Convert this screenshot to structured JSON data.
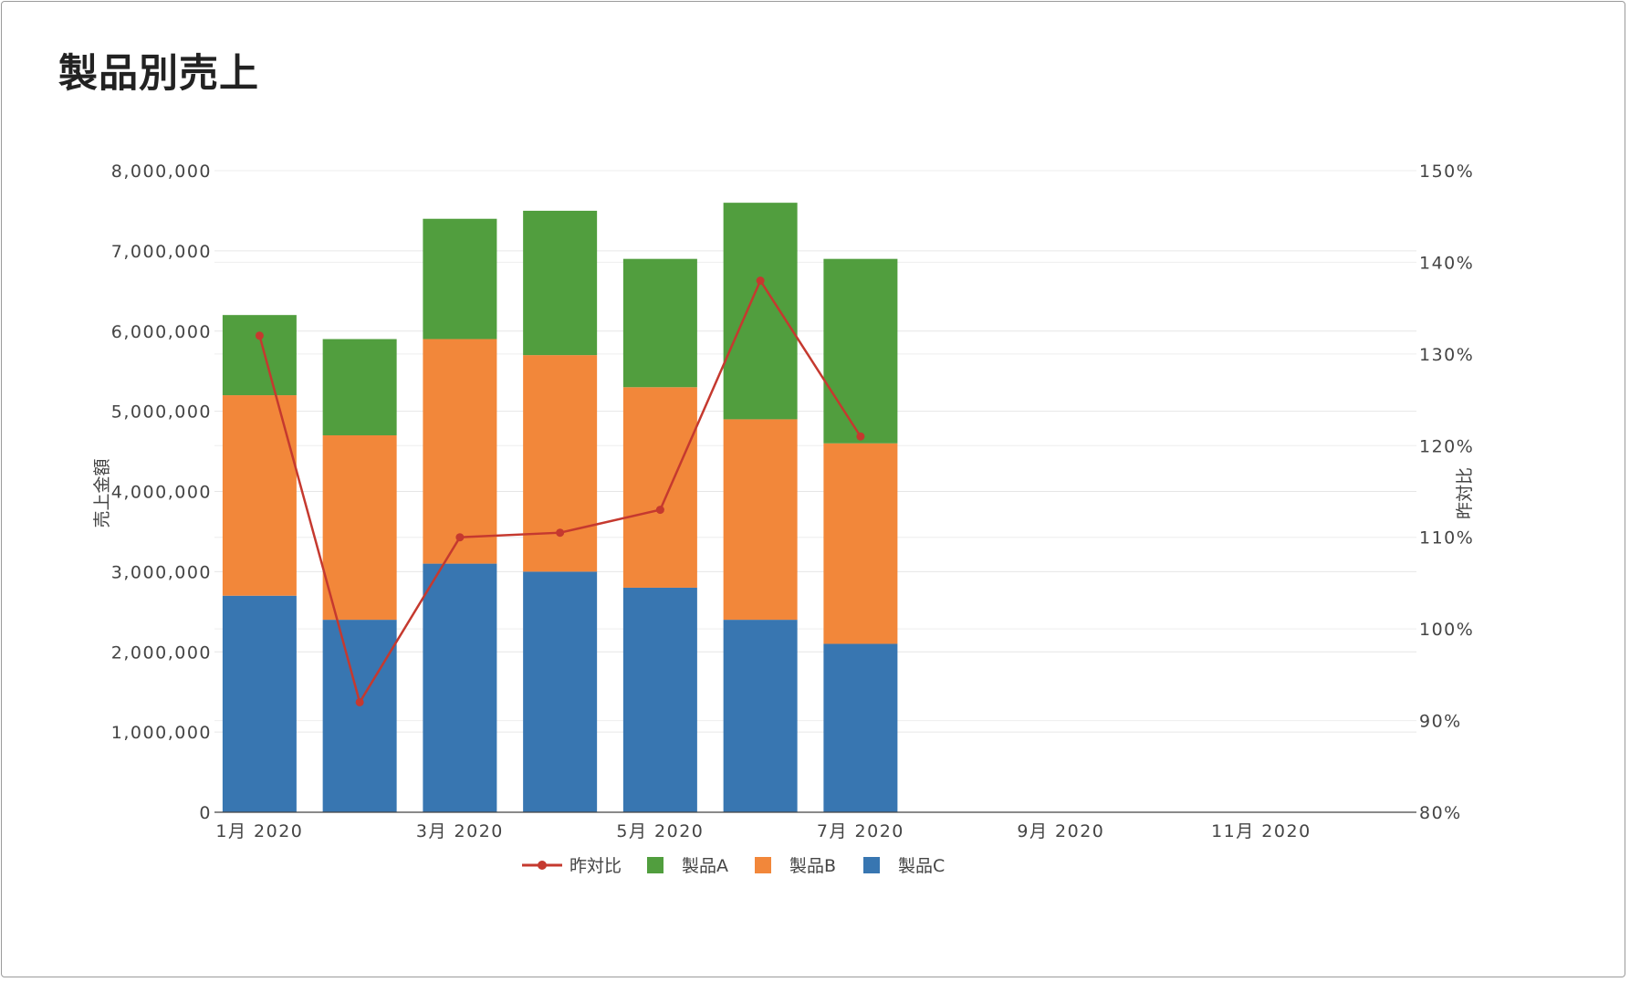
{
  "title": "製品別売上",
  "chart_data": {
    "type": "bar",
    "stacked": true,
    "categories": [
      "1月 2020",
      "2月 2020",
      "3月 2020",
      "4月 2020",
      "5月 2020",
      "6月 2020",
      "7月 2020"
    ],
    "x_tick_labels": [
      "1月 2020",
      "3月 2020",
      "5月 2020",
      "7月 2020",
      "9月 2020",
      "11月 2020"
    ],
    "x_tick_months": [
      1,
      3,
      5,
      7,
      9,
      11
    ],
    "x_months": [
      1,
      2,
      3,
      4,
      5,
      6,
      7
    ],
    "x_range_months": [
      0.55,
      12.55
    ],
    "series": [
      {
        "name": "製品C",
        "color": "#3876b1",
        "values": [
          2700000,
          2400000,
          3100000,
          3000000,
          2800000,
          2400000,
          2100000
        ]
      },
      {
        "name": "製品B",
        "color": "#f2873a",
        "values": [
          2500000,
          2300000,
          2800000,
          2700000,
          2500000,
          2500000,
          2500000
        ]
      },
      {
        "name": "製品A",
        "color": "#519e3e",
        "values": [
          1000000,
          1200000,
          1500000,
          1800000,
          1600000,
          2700000,
          2300000
        ]
      }
    ],
    "line_series": {
      "name": "昨対比",
      "color": "#c5392f",
      "axis": "y2",
      "values": [
        132,
        92,
        110,
        110.5,
        113,
        138,
        121
      ]
    },
    "y_label": "売上金額",
    "y_range": [
      0,
      8000000
    ],
    "y_ticks": [
      0,
      1000000,
      2000000,
      3000000,
      4000000,
      5000000,
      6000000,
      7000000,
      8000000
    ],
    "y_tick_labels": [
      "0",
      "1,000,000",
      "2,000,000",
      "3,000,000",
      "4,000,000",
      "5,000,000",
      "6,000,000",
      "7,000,000",
      "8,000,000"
    ],
    "y2_label": "昨対比",
    "y2_range": [
      80,
      150
    ],
    "y2_ticks": [
      80,
      90,
      100,
      110,
      120,
      130,
      140,
      150
    ],
    "y2_tick_labels": [
      "80%",
      "90%",
      "100%",
      "110%",
      "120%",
      "130%",
      "140%",
      "150%"
    ],
    "legend": {
      "position": "bottom",
      "items": [
        {
          "name": "昨対比",
          "type": "line",
          "color": "#c5392f"
        },
        {
          "name": "製品A",
          "type": "box",
          "color": "#519e3e"
        },
        {
          "name": "製品B",
          "type": "box",
          "color": "#f2873a"
        },
        {
          "name": "製品C",
          "type": "box",
          "color": "#3876b1"
        }
      ]
    }
  }
}
